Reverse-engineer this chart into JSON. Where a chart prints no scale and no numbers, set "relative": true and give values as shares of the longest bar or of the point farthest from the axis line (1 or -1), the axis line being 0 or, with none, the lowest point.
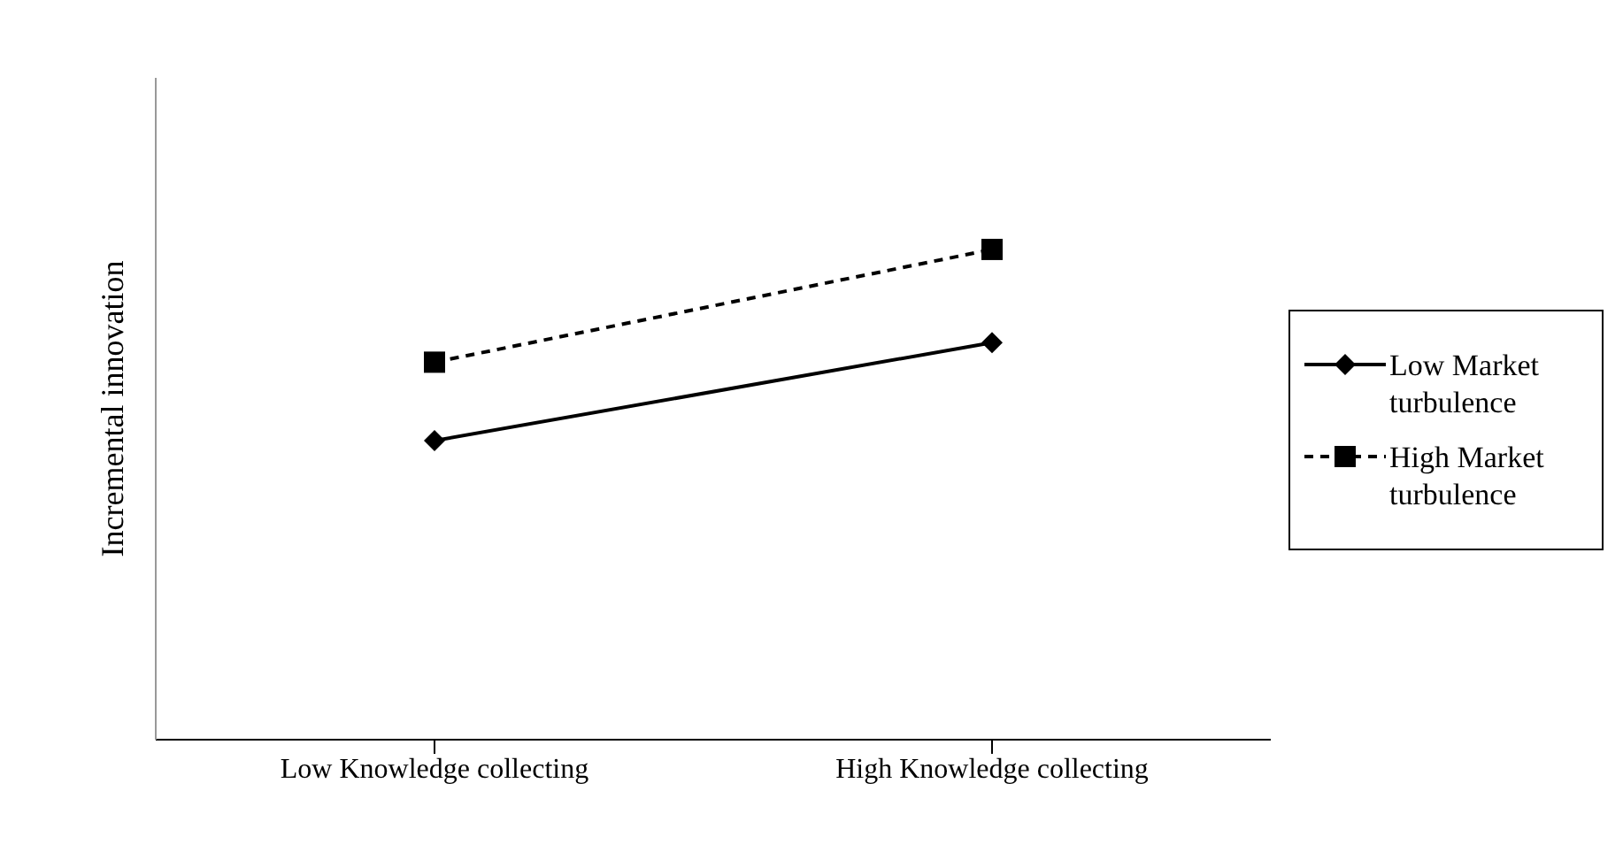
{
  "chart_data": {
    "type": "line",
    "ylabel": "Incremental innovation",
    "categories": [
      "Low Knowledge collecting",
      "High Knowledge collecting"
    ],
    "relative": true,
    "legend": "right",
    "grid": false,
    "series": [
      {
        "name": "Low Market turbulence",
        "color": "#000000",
        "values": [
          0.61,
          0.81
        ],
        "marker": "diamond",
        "line_style": "solid"
      },
      {
        "name": "High Market turbulence",
        "color": "#000000",
        "values": [
          0.77,
          1
        ],
        "marker": "square",
        "line_style": "dashed"
      }
    ]
  }
}
